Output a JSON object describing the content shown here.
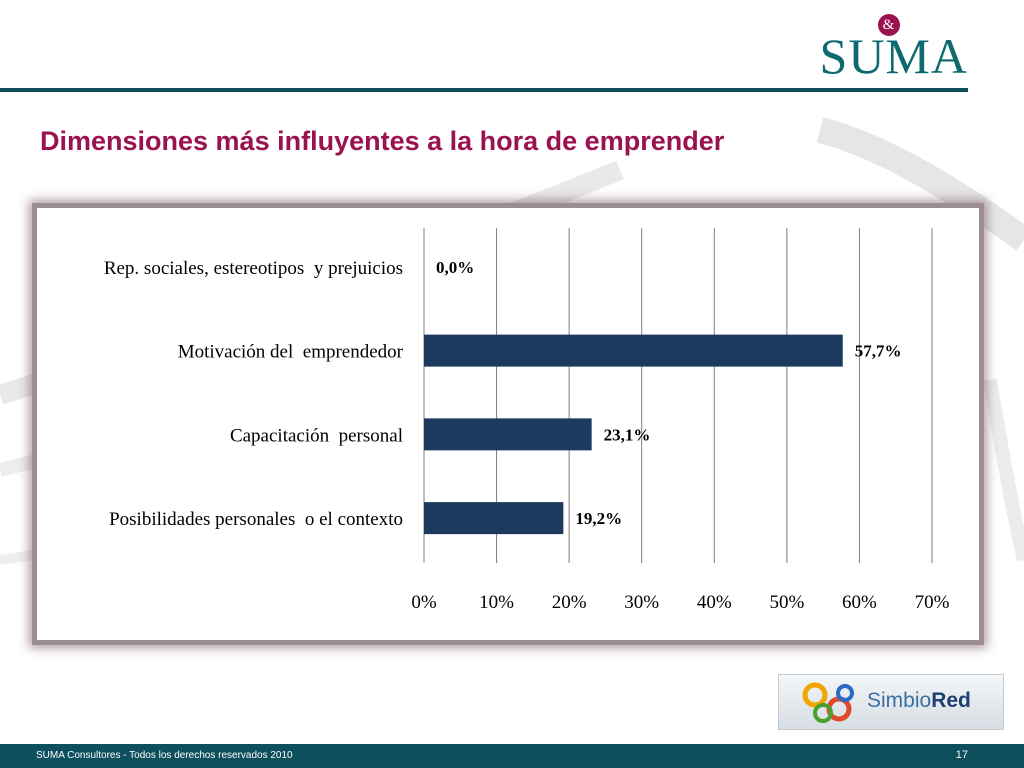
{
  "slide": {
    "title": "Dimensiones más influyentes a la hora de emprender",
    "page_number": "17"
  },
  "logo": {
    "text": "SUMA",
    "amp": "&",
    "color": "#0d6b70",
    "amp_color": "#9b1250"
  },
  "partner_logo": {
    "text_a": "Simbio",
    "text_b": "Red"
  },
  "footer": {
    "text": "SUMA Consultores - Todos los derechos reservados 2010"
  },
  "colors": {
    "title": "#9b1250",
    "bar": "#1c3a5e",
    "band": "#0d4f5c"
  },
  "chart_data": {
    "type": "bar",
    "orientation": "horizontal",
    "categories": [
      "Rep. sociales, estereotipos  y prejuicios",
      "Motivación del  emprendedor",
      "Capacitación  personal",
      "Posibilidades personales  o el contexto"
    ],
    "values": [
      0.0,
      57.7,
      23.1,
      19.2
    ],
    "value_labels": [
      "0,0%",
      "57,7%",
      "23,1%",
      "19,2%"
    ],
    "xlim": [
      0,
      70
    ],
    "xticks": [
      "0%",
      "10%",
      "20%",
      "30%",
      "40%",
      "50%",
      "60%",
      "70%"
    ],
    "grid": "vertical",
    "legend": "none"
  }
}
